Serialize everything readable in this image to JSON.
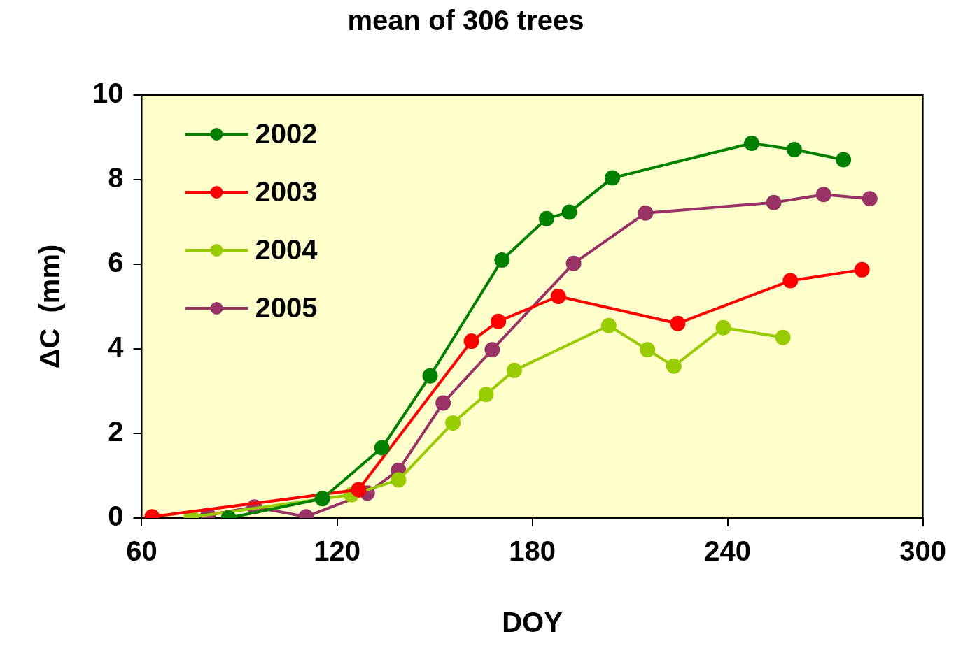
{
  "chart_data": {
    "type": "line",
    "title": "mean of 306 trees",
    "xlabel": "DOY",
    "ylabel": "ΔC  (mm)",
    "xlim": [
      60,
      300
    ],
    "xticks": [
      60,
      120,
      180,
      240,
      300
    ],
    "ylim": [
      0,
      10
    ],
    "yticks": [
      0,
      2,
      4,
      6,
      8,
      10
    ],
    "grid": false,
    "legend": "top left",
    "marker": "circle",
    "line_style": "solid",
    "series": [
      {
        "name": "2002",
        "color": "#008000",
        "x": [
          86.7,
          115.5,
          133.8,
          148.6,
          170.7,
          184.4,
          191.4,
          204.6,
          247.4,
          260.5,
          275.6
        ],
        "values": [
          0.0,
          0.46,
          1.66,
          3.36,
          6.1,
          7.08,
          7.23,
          8.04,
          8.86,
          8.71,
          8.47
        ]
      },
      {
        "name": "2003",
        "color": "#ff0000",
        "x": [
          63.2,
          126.6,
          161.3,
          169.6,
          188.0,
          224.7,
          259.3,
          281.3
        ],
        "values": [
          0.03,
          0.67,
          4.18,
          4.65,
          5.24,
          4.6,
          5.61,
          5.87
        ]
      },
      {
        "name": "2004",
        "color": "#99cc00",
        "x": [
          75.3,
          124.4,
          138.9,
          155.6,
          165.8,
          174.5,
          203.5,
          215.4,
          223.5,
          238.7,
          257.0
        ],
        "values": [
          0.02,
          0.55,
          0.9,
          2.25,
          2.92,
          3.49,
          4.55,
          3.98,
          3.59,
          4.5,
          4.27
        ]
      },
      {
        "name": "2005",
        "color": "#993366",
        "x": [
          80.4,
          94.6,
          110.5,
          129.3,
          138.9,
          152.6,
          167.7,
          192.7,
          214.8,
          254.2,
          269.5,
          283.7
        ],
        "values": [
          0.07,
          0.26,
          0.03,
          0.59,
          1.13,
          2.72,
          3.98,
          6.02,
          7.21,
          7.46,
          7.65,
          7.55
        ]
      }
    ]
  }
}
